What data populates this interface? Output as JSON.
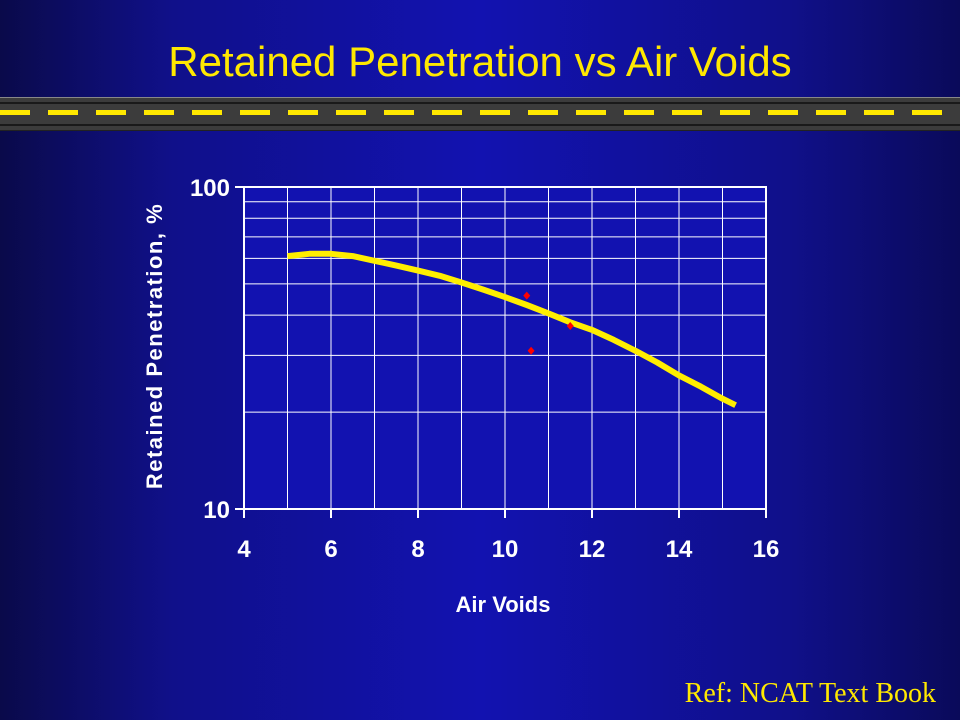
{
  "slide": {
    "title": "Retained Penetration vs Air Voids",
    "reference": "Ref: NCAT Text Book"
  },
  "colors": {
    "background": "#1212b0",
    "title": "#ffe800",
    "curve": "#ffee00",
    "points": "#ff0000",
    "axis_text": "#ffffff",
    "plot_area": "#1212b0"
  },
  "chart_data": {
    "type": "scatter",
    "title": "",
    "xlabel": "Air Voids",
    "ylabel": "Retained Penetration, %",
    "xlim": [
      4,
      16
    ],
    "ylim": [
      10,
      100
    ],
    "y_scale": "log",
    "grid": true,
    "x_ticks": [
      "4",
      "6",
      "8",
      "10",
      "12",
      "14",
      "16"
    ],
    "y_ticks": [
      "100",
      "10"
    ],
    "series": [
      {
        "kind": "trend-line",
        "x": [
          5,
          5.5,
          6,
          6.5,
          7,
          7.5,
          8,
          8.5,
          9,
          9.5,
          10,
          10.5,
          11,
          11.5,
          12,
          12.5,
          13,
          13.5,
          14,
          14.5,
          15,
          15.3
        ],
        "y": [
          61,
          62,
          62,
          61,
          59,
          57,
          55,
          53,
          50.5,
          48,
          45.5,
          43,
          40.5,
          38,
          36,
          33.5,
          31,
          28.5,
          26,
          24,
          22,
          21
        ]
      },
      {
        "kind": "points",
        "x": [
          10.5,
          10.6,
          11.5
        ],
        "y": [
          46,
          31,
          37
        ]
      }
    ]
  }
}
